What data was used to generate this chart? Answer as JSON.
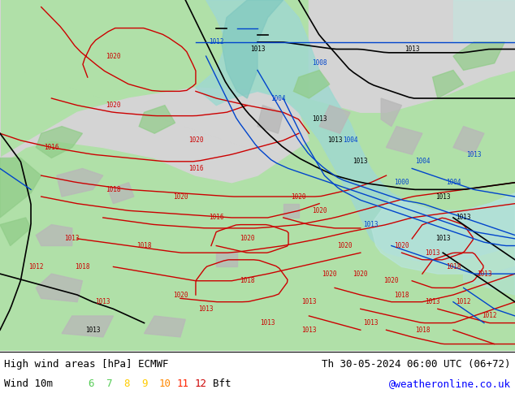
{
  "title_left_line1": "High wind areas [hPa] ECMWF",
  "title_left_line2": "Wind 10m",
  "title_right_line1": "Th 30-05-2024 06:00 UTC (06+72)",
  "title_right_line2": "@weatheronline.co.uk",
  "bft_numbers": [
    "6",
    "7",
    "8",
    "9",
    "10",
    "11",
    "12"
  ],
  "bft_colors": [
    "#55cc55",
    "#55cc55",
    "#ffcc00",
    "#ffcc00",
    "#ff8800",
    "#ff2200",
    "#cc0000"
  ],
  "bft_label": "Bft",
  "fig_width": 6.34,
  "fig_height": 4.9,
  "dpi": 100,
  "bottom_bar_color": "#ffffff",
  "text_color": "#000000",
  "website_color": "#0000ff",
  "map_bg_green": "#b8e8b0",
  "map_bg_gray": "#d0d0d0",
  "map_bg_teal": "#a8e0d8",
  "map_bg_ltgreen": "#c8f0c0",
  "land_gray": "#c0c0c0",
  "sea_teal": "#90d8d0"
}
